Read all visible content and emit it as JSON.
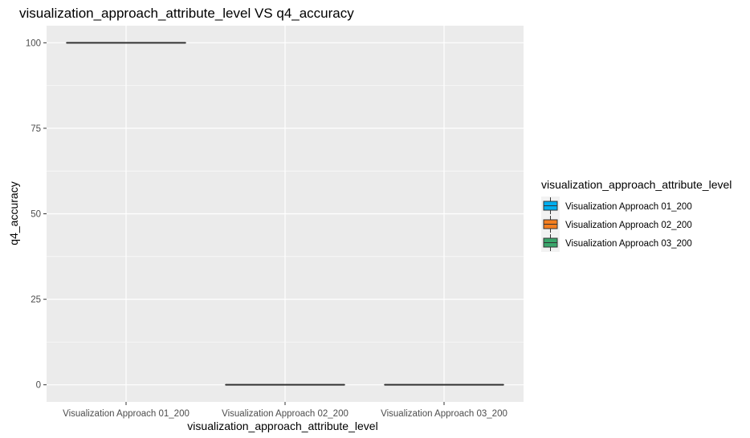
{
  "chart_data": {
    "type": "boxplot",
    "title": "visualization_approach_attribute_level VS q4_accuracy",
    "xlabel": "visualization_approach_attribute_level",
    "ylabel": "q4_accuracy",
    "categories": [
      "Visualization Approach 01_200",
      "Visualization Approach 02_200",
      "Visualization Approach 03_200"
    ],
    "boxes": [
      {
        "category": "Visualization Approach 01_200",
        "min": 100,
        "q1": 100,
        "median": 100,
        "q3": 100,
        "max": 100,
        "color": "#00aeef"
      },
      {
        "category": "Visualization Approach 02_200",
        "min": 0,
        "q1": 0,
        "median": 0,
        "q3": 0,
        "max": 0,
        "color": "#f47e1f"
      },
      {
        "category": "Visualization Approach 03_200",
        "min": 0,
        "q1": 0,
        "median": 0,
        "q3": 0,
        "max": 0,
        "color": "#3aa66b"
      }
    ],
    "ylim": [
      -5,
      105
    ],
    "yticks": [
      0,
      25,
      50,
      75,
      100
    ],
    "grid": true,
    "legend": {
      "title": "visualization_approach_attribute_level",
      "position": "right",
      "entries": [
        {
          "label": "Visualization Approach 01_200",
          "color": "#00aeef"
        },
        {
          "label": "Visualization Approach 02_200",
          "color": "#f47e1f"
        },
        {
          "label": "Visualization Approach 03_200",
          "color": "#3aa66b"
        }
      ]
    },
    "panel_background": "#ebebeb",
    "grid_color": "#ffffff"
  }
}
